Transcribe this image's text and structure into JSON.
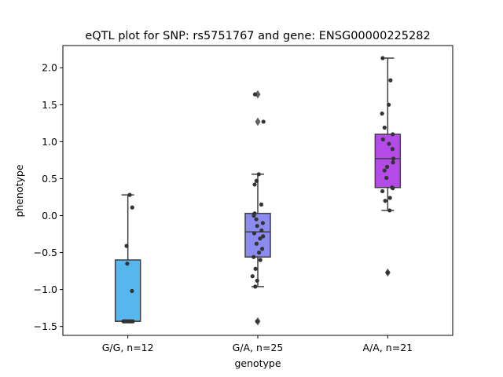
{
  "chart_data": {
    "type": "box",
    "title": "eQTL plot for SNP: rs5751767 and gene: ENSG00000225282",
    "xlabel": "genotype",
    "ylabel": "phenotype",
    "ylim": [
      -1.62,
      2.3
    ],
    "yticks": [
      -1.5,
      -1.0,
      -0.5,
      0.0,
      0.5,
      1.0,
      1.5,
      2.0
    ],
    "ytick_labels": [
      "−1.5",
      "−1.0",
      "−0.5",
      "0.0",
      "0.5",
      "1.0",
      "1.5",
      "2.0"
    ],
    "grid": false,
    "categories": [
      "G/G, n=12",
      "G/A, n=25",
      "A/A, n=21"
    ],
    "boxes": [
      {
        "category": "G/G, n=12",
        "color": "#57b6ee",
        "q1": -1.43,
        "median": -1.43,
        "q3": -0.6,
        "whisker_low": -1.43,
        "whisker_high": 0.28,
        "outliers": [],
        "points": [
          {
            "y": 0.28,
            "j": 0.15
          },
          {
            "y": 0.11,
            "j": 0.35
          },
          {
            "y": -0.41,
            "j": -0.1
          },
          {
            "y": -0.65,
            "j": -0.05
          },
          {
            "y": -1.02,
            "j": 0.33
          },
          {
            "y": -1.43,
            "j": -0.35
          },
          {
            "y": -1.43,
            "j": -0.25
          },
          {
            "y": -1.43,
            "j": -0.12
          },
          {
            "y": -1.43,
            "j": 0.05
          },
          {
            "y": -1.43,
            "j": 0.18
          },
          {
            "y": -1.43,
            "j": 0.28
          },
          {
            "y": -1.43,
            "j": 0.4
          }
        ]
      },
      {
        "category": "G/A, n=25",
        "color": "#8c8cf0",
        "q1": -0.56,
        "median": -0.22,
        "q3": 0.03,
        "whisker_low": -0.96,
        "whisker_high": 0.56,
        "outliers": [
          1.64,
          1.27,
          -1.43
        ],
        "points": [
          {
            "y": 1.64,
            "j": -0.22
          },
          {
            "y": 1.27,
            "j": 0.45
          },
          {
            "y": 0.56,
            "j": 0.08
          },
          {
            "y": 0.47,
            "j": -0.1
          },
          {
            "y": 0.42,
            "j": -0.25
          },
          {
            "y": 0.15,
            "j": 0.28
          },
          {
            "y": 0.03,
            "j": -0.25
          },
          {
            "y": 0.0,
            "j": -0.32
          },
          {
            "y": -0.05,
            "j": -0.12
          },
          {
            "y": -0.1,
            "j": 0.4
          },
          {
            "y": -0.14,
            "j": -0.05
          },
          {
            "y": -0.2,
            "j": 0.3
          },
          {
            "y": -0.24,
            "j": -0.28
          },
          {
            "y": -0.28,
            "j": 0.42
          },
          {
            "y": -0.31,
            "j": 0.18
          },
          {
            "y": -0.38,
            "j": -0.1
          },
          {
            "y": -0.45,
            "j": 0.35
          },
          {
            "y": -0.5,
            "j": 0.1
          },
          {
            "y": -0.56,
            "j": -0.33
          },
          {
            "y": -0.6,
            "j": 0.2
          },
          {
            "y": -0.72,
            "j": -0.18
          },
          {
            "y": -0.82,
            "j": -0.42
          },
          {
            "y": -0.88,
            "j": -0.05
          },
          {
            "y": -0.96,
            "j": -0.2
          },
          {
            "y": -1.43,
            "j": -0.05
          }
        ]
      },
      {
        "category": "A/A, n=21",
        "color": "#b44ae8",
        "q1": 0.38,
        "median": 0.77,
        "q3": 1.1,
        "whisker_low": 0.07,
        "whisker_high": 2.13,
        "outliers": [
          -0.77
        ],
        "points": [
          {
            "y": 2.13,
            "j": -0.4
          },
          {
            "y": 1.83,
            "j": 0.22
          },
          {
            "y": 1.5,
            "j": 0.08
          },
          {
            "y": 1.38,
            "j": -0.45
          },
          {
            "y": 1.19,
            "j": -0.25
          },
          {
            "y": 1.1,
            "j": 0.4
          },
          {
            "y": 1.03,
            "j": -0.38
          },
          {
            "y": 0.97,
            "j": 0.1
          },
          {
            "y": 0.9,
            "j": 0.38
          },
          {
            "y": 0.77,
            "j": 0.45
          },
          {
            "y": 0.72,
            "j": 0.42
          },
          {
            "y": 0.66,
            "j": -0.05
          },
          {
            "y": 0.61,
            "j": -0.25
          },
          {
            "y": 0.51,
            "j": -0.1
          },
          {
            "y": 0.38,
            "j": 0.35
          },
          {
            "y": 0.37,
            "j": 0.4
          },
          {
            "y": 0.33,
            "j": -0.42
          },
          {
            "y": 0.24,
            "j": 0.18
          },
          {
            "y": 0.2,
            "j": -0.2
          },
          {
            "y": 0.07,
            "j": 0.15
          },
          {
            "y": -0.77,
            "j": 0.0
          }
        ]
      }
    ]
  }
}
